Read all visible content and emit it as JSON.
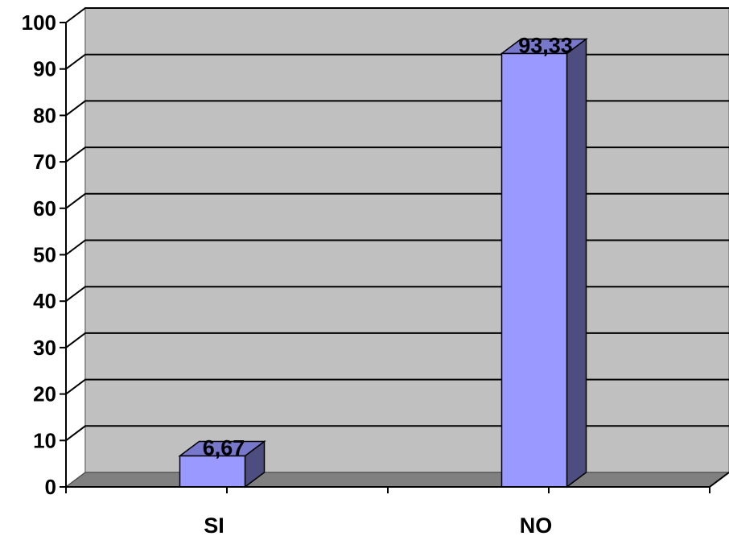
{
  "chart_data": {
    "type": "bar",
    "categories": [
      "SI",
      "NO"
    ],
    "values": [
      6.67,
      93.33
    ],
    "value_labels": [
      "6,67",
      "93,33"
    ],
    "ylim": [
      0,
      100
    ],
    "yticks": [
      0,
      10,
      20,
      30,
      40,
      50,
      60,
      70,
      80,
      90,
      100
    ],
    "grid": true,
    "legend": "none",
    "style": "3d-column",
    "colors": {
      "bar_front": "#9999ff",
      "bar_side": "#4d4d80",
      "bar_top": "#7777cc",
      "plot_back": "#c0c0c0",
      "floor": "#808080",
      "grid": "#000000"
    }
  }
}
